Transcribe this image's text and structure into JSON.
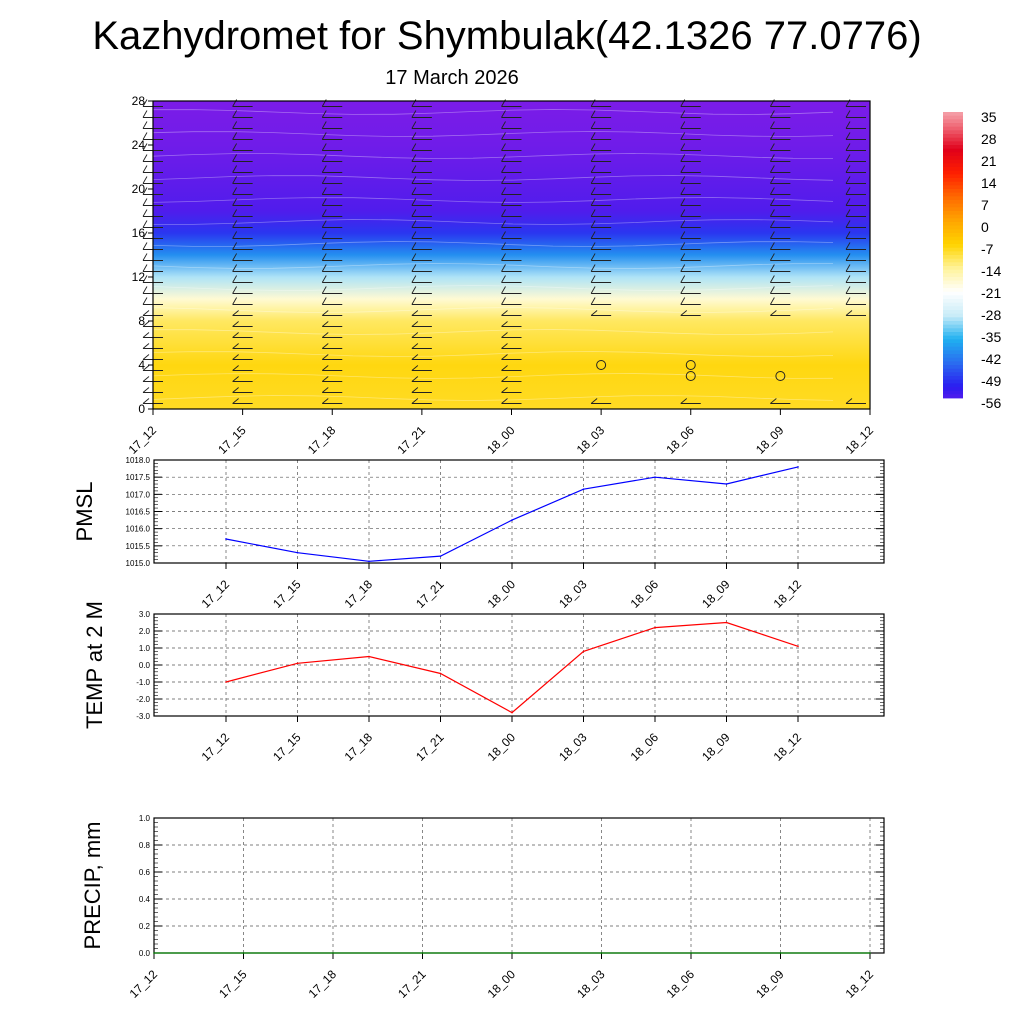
{
  "title": "Kazhydromet for Shymbulak(42.1326 77.0776)",
  "subtitle": "17 March 2026",
  "chart_data": [
    {
      "type": "heatmap",
      "name": "temperature-profile",
      "y_ticks": [
        "0",
        "4",
        "8",
        "12",
        "16",
        "20",
        "24",
        "28"
      ],
      "ylim": [
        0,
        28
      ],
      "x_ticks": [
        "17_12",
        "17_15",
        "17_18",
        "17_21",
        "18_00",
        "18_03",
        "18_06",
        "18_09",
        "18_12"
      ],
      "colorbar_ticks": [
        "35",
        "28",
        "21",
        "14",
        "7",
        "0",
        "-7",
        "-14",
        "-21",
        "-28",
        "-35",
        "-42",
        "-49",
        "-56"
      ],
      "colorbar_range": [
        -60,
        38
      ],
      "colorbar_colors": [
        "#7b1ce8",
        "#2a1cf0",
        "#2a6cf0",
        "#1fb0f0",
        "#c8ecf8",
        "#ffffff",
        "#fff39a",
        "#ffd400",
        "#ffa500",
        "#ff6a00",
        "#ff2000",
        "#e0001a",
        "#f06a78",
        "#f7c8cc"
      ],
      "temperature_profile": [
        {
          "height": 0,
          "value": -9
        },
        {
          "height": 4,
          "value": -8
        },
        {
          "height": 8,
          "value": -12
        },
        {
          "height": 9,
          "value": -15
        },
        {
          "height": 10,
          "value": -19
        },
        {
          "height": 12,
          "value": -31
        },
        {
          "height": 14,
          "value": -41
        },
        {
          "height": 16,
          "value": -50
        },
        {
          "height": 18,
          "value": -56
        },
        {
          "height": 20,
          "value": -57
        },
        {
          "height": 24,
          "value": -59
        },
        {
          "height": 28,
          "value": -60
        }
      ],
      "calm_markers": [
        {
          "x": "18_03",
          "height": 4
        },
        {
          "x": "18_06",
          "height": 4
        },
        {
          "x": "18_06",
          "height": 3
        },
        {
          "x": "18_09",
          "height": 3
        }
      ]
    },
    {
      "type": "line",
      "name": "pmsl",
      "ylabel": "PMSL",
      "categories": [
        "17_12",
        "17_15",
        "17_18",
        "17_21",
        "18_00",
        "18_03",
        "18_06",
        "18_09",
        "18_12"
      ],
      "values": [
        1015.7,
        1015.3,
        1015.05,
        1015.2,
        1016.25,
        1017.15,
        1017.5,
        1017.3,
        1017.8
      ],
      "ylim": [
        1015.0,
        1018.0
      ],
      "y_ticks": [
        "1015.0",
        "1015.5",
        "1016.0",
        "1016.5",
        "1017.0",
        "1017.5",
        "1018.0"
      ],
      "color": "#0000ff"
    },
    {
      "type": "line",
      "name": "temp2m",
      "ylabel": "TEMP at 2 M",
      "categories": [
        "17_12",
        "17_15",
        "17_18",
        "17_21",
        "18_00",
        "18_03",
        "18_06",
        "18_09",
        "18_12"
      ],
      "values": [
        -1.0,
        0.1,
        0.5,
        -0.5,
        -2.8,
        0.8,
        2.2,
        2.5,
        1.1
      ],
      "ylim": [
        -3.0,
        3.0
      ],
      "y_ticks": [
        "-3.0",
        "-2.0",
        "-1.0",
        "0.0",
        "1.0",
        "2.0",
        "3.0"
      ],
      "color": "#ff0000"
    },
    {
      "type": "line",
      "name": "precip",
      "ylabel": "PRECIP, mm",
      "categories": [
        "17_12",
        "17_15",
        "17_18",
        "17_21",
        "18_00",
        "18_03",
        "18_06",
        "18_09",
        "18_12"
      ],
      "values": [
        0,
        0,
        0,
        0,
        0,
        0,
        0,
        0,
        0
      ],
      "ylim": [
        0.0,
        1.0
      ],
      "y_ticks": [
        "0.0",
        "0.2",
        "0.4",
        "0.6",
        "0.8",
        "1.0"
      ],
      "color": "#008000"
    }
  ]
}
